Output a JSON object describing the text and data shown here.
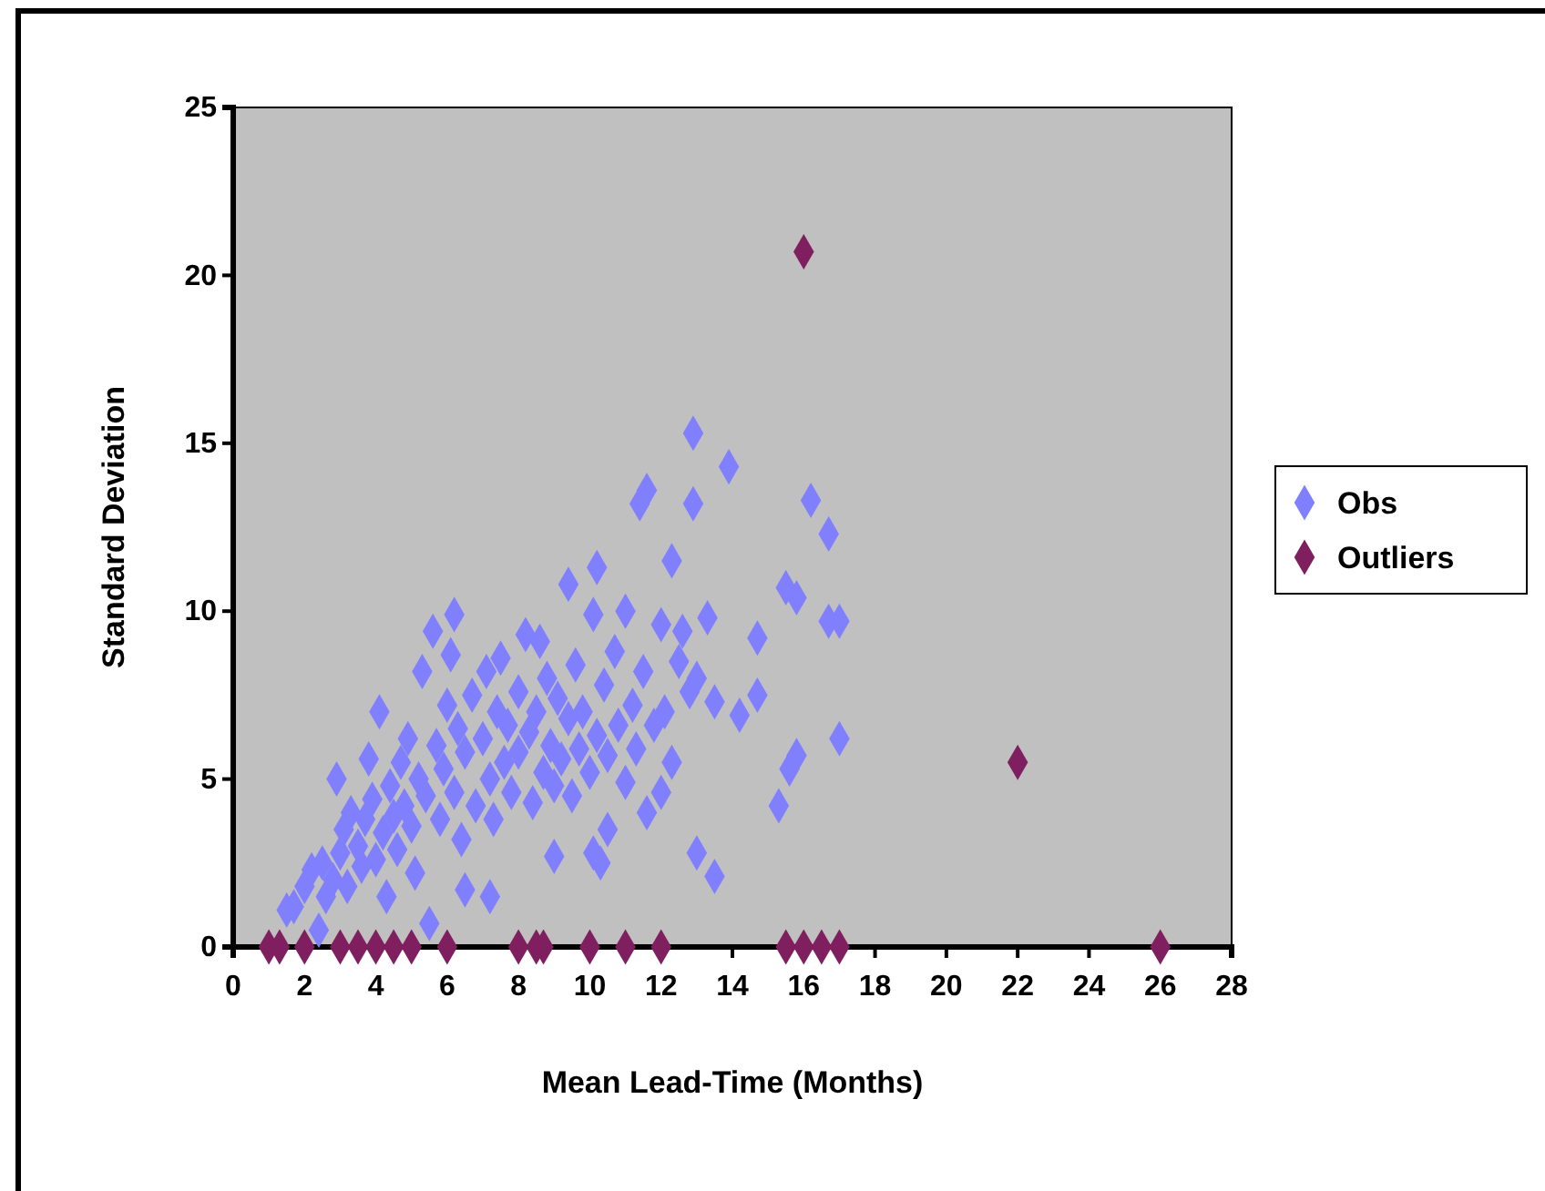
{
  "chart_data": {
    "type": "scatter",
    "xlabel": "Mean Lead-Time (Months)",
    "ylabel": "Standard Deviation",
    "xlim": [
      0,
      28
    ],
    "xticks": [
      0,
      2,
      4,
      6,
      8,
      10,
      12,
      14,
      16,
      18,
      20,
      22,
      24,
      26,
      28
    ],
    "ylim": [
      0,
      25
    ],
    "yticks": [
      0,
      5,
      10,
      15,
      20,
      25
    ],
    "grid": false,
    "legend": "right",
    "marker": "diamond",
    "series": [
      {
        "name": "Obs",
        "color": "#8080ff",
        "x": [
          1.5,
          1.7,
          2.0,
          2.2,
          2.4,
          2.5,
          2.6,
          2.8,
          2.9,
          3.0,
          3.1,
          3.2,
          3.3,
          3.5,
          3.6,
          3.7,
          3.8,
          3.9,
          4.0,
          4.1,
          4.2,
          4.3,
          4.4,
          4.5,
          4.6,
          4.7,
          4.8,
          4.9,
          5.0,
          5.1,
          5.2,
          5.3,
          5.4,
          5.5,
          5.6,
          5.7,
          5.8,
          5.9,
          6.0,
          6.1,
          6.2,
          6.2,
          6.3,
          6.4,
          6.5,
          6.5,
          6.7,
          6.8,
          7.0,
          7.1,
          7.2,
          7.2,
          7.3,
          7.4,
          7.5,
          7.6,
          7.7,
          7.8,
          8.0,
          8.0,
          8.2,
          8.3,
          8.4,
          8.5,
          8.6,
          8.7,
          8.8,
          8.9,
          9.0,
          9.0,
          9.1,
          9.2,
          9.4,
          9.4,
          9.5,
          9.6,
          9.7,
          9.8,
          10.0,
          10.1,
          10.1,
          10.2,
          10.2,
          10.3,
          10.4,
          10.5,
          10.5,
          10.7,
          10.8,
          11.0,
          11.0,
          11.2,
          11.3,
          11.4,
          11.5,
          11.6,
          11.6,
          11.8,
          12.0,
          12.0,
          12.1,
          12.3,
          12.3,
          12.5,
          12.6,
          12.8,
          12.9,
          12.9,
          13.0,
          13.0,
          13.3,
          13.5,
          13.5,
          13.9,
          14.2,
          14.7,
          14.7,
          15.3,
          15.5,
          15.6,
          15.8,
          15.8,
          16.2,
          16.7,
          16.7,
          17.0,
          17.0
        ],
        "values": [
          1.1,
          1.2,
          1.8,
          2.3,
          0.5,
          2.5,
          1.5,
          2.0,
          5.0,
          2.8,
          3.5,
          1.8,
          4.0,
          3.0,
          2.4,
          3.8,
          5.6,
          4.4,
          2.6,
          7.0,
          3.4,
          1.5,
          4.8,
          3.9,
          2.9,
          5.5,
          4.2,
          6.2,
          3.6,
          2.2,
          5.0,
          8.2,
          4.5,
          0.7,
          9.4,
          6.0,
          3.8,
          5.3,
          7.2,
          8.7,
          9.9,
          4.6,
          6.5,
          3.2,
          1.7,
          5.8,
          7.5,
          4.2,
          6.2,
          8.2,
          1.5,
          5.0,
          3.8,
          7.0,
          8.6,
          5.5,
          6.6,
          4.6,
          7.6,
          5.8,
          9.3,
          6.4,
          4.3,
          7.0,
          9.1,
          5.2,
          8.0,
          6.0,
          2.7,
          4.8,
          7.4,
          5.6,
          10.8,
          6.8,
          4.5,
          8.4,
          5.9,
          7.0,
          5.2,
          9.9,
          2.8,
          11.3,
          6.3,
          2.5,
          7.8,
          3.5,
          5.7,
          8.8,
          6.6,
          10.0,
          4.9,
          7.2,
          5.9,
          13.2,
          8.2,
          13.6,
          4.0,
          6.6,
          9.6,
          4.6,
          7.0,
          11.5,
          5.5,
          8.5,
          9.4,
          7.6,
          15.3,
          13.2,
          2.8,
          8.0,
          9.8,
          2.1,
          7.3,
          14.3,
          6.9,
          9.2,
          7.5,
          4.2,
          10.7,
          5.3,
          5.7,
          10.4,
          13.3,
          12.3,
          9.7,
          9.7,
          6.2
        ]
      },
      {
        "name": "Outliers",
        "color": "#7f1f5f",
        "x": [
          1,
          1.3,
          2,
          3,
          3.5,
          4,
          4.5,
          5,
          6,
          8,
          8.5,
          8.7,
          10,
          11,
          12,
          15.5,
          16,
          16.5,
          17,
          26,
          16,
          22
        ],
        "values": [
          0,
          0,
          0,
          0,
          0,
          0,
          0,
          0,
          0,
          0,
          0,
          0,
          0,
          0,
          0,
          0,
          0,
          0,
          0,
          0,
          20.7,
          5.5
        ]
      }
    ]
  }
}
